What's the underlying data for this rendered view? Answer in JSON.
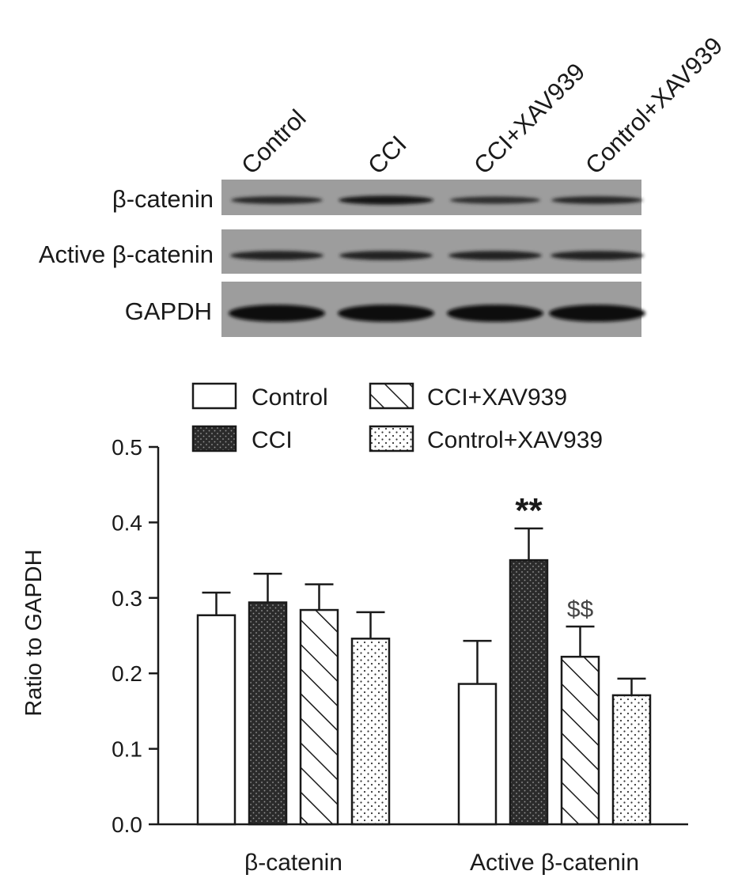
{
  "western_blot": {
    "lanes": [
      "Control",
      "CCI",
      "CCI+XAV939",
      "Control+XAV939"
    ],
    "rows": [
      {
        "label": "β-catenin",
        "band_intensity": [
          0.55,
          0.85,
          0.45,
          0.55
        ]
      },
      {
        "label": "Active β-catenin",
        "band_intensity": [
          0.7,
          0.7,
          0.7,
          0.7
        ]
      },
      {
        "label": "GAPDH",
        "band_intensity": [
          1.0,
          1.0,
          1.0,
          1.0
        ]
      }
    ]
  },
  "chart_data": {
    "type": "bar",
    "categories": [
      "β-catenin",
      "Active β-catenin"
    ],
    "series": [
      {
        "name": "Control",
        "values": [
          0.277,
          0.186
        ],
        "errors": [
          0.03,
          0.057
        ],
        "pattern": "open"
      },
      {
        "name": "CCI",
        "values": [
          0.294,
          0.35
        ],
        "errors": [
          0.038,
          0.042
        ],
        "pattern": "dark-dotted"
      },
      {
        "name": "CCI+XAV939",
        "values": [
          0.284,
          0.222
        ],
        "errors": [
          0.034,
          0.04
        ],
        "pattern": "hatched"
      },
      {
        "name": "Control+XAV939",
        "values": [
          0.246,
          0.171
        ],
        "errors": [
          0.035,
          0.022
        ],
        "pattern": "dotted"
      }
    ],
    "ylabel": "Ratio to GAPDH",
    "xlabel": "",
    "ylim": [
      0,
      0.5
    ],
    "yticks": [
      "0.0",
      "0.1",
      "0.2",
      "0.3",
      "0.4",
      "0.5"
    ],
    "legend_position": "top",
    "grid": false,
    "annotations": [
      {
        "text": "**",
        "category": 1,
        "series": 1
      },
      {
        "text": "$$",
        "category": 1,
        "series": 2
      }
    ]
  }
}
